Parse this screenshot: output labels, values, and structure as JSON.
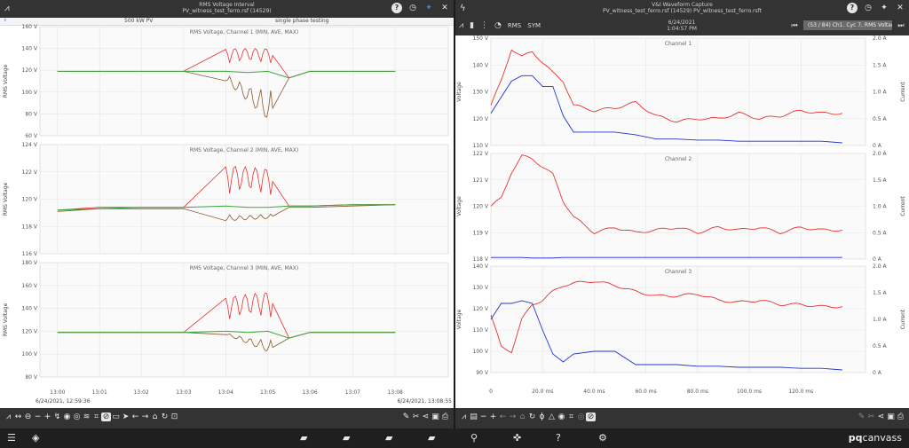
{
  "left_panel": {
    "title_line1": "RMS Voltage Interval",
    "title_line2": "PV_witness_test_ferro.rsf (14529)",
    "subheader_left": "500 kW PV",
    "subheader_right": "single phase testing",
    "chevron_icon": "chevron-right-icon",
    "start_datetime": "6/24/2021, 12:59:36",
    "end_datetime": "6/24/2021, 13:08:55",
    "xticks": [
      "13:00",
      "13:01",
      "13:02",
      "13:03",
      "13:04",
      "13:05",
      "13:06",
      "13:07",
      "13:08"
    ],
    "charts": [
      {
        "title": "RMS Voltage, Channel 1 (MIN, AVE, MAX)",
        "ylabel": "RMS Voltage",
        "yticks": [
          "160 V",
          "140 V",
          "120 V",
          "100 V",
          "80 V",
          "60 V"
        ]
      },
      {
        "title": "RMS Voltage, Channel 2 (MIN, AVE, MAX)",
        "ylabel": "RMS Voltage",
        "yticks": [
          "124 V",
          "122 V",
          "120 V",
          "118 V",
          "116 V"
        ]
      },
      {
        "title": "RMS Voltage, Channel 3 (MIN, AVE, MAX)",
        "ylabel": "RMS Voltage",
        "yticks": [
          "180 V",
          "160 V",
          "140 V",
          "120 V",
          "100 V",
          "80 V"
        ]
      }
    ]
  },
  "right_panel": {
    "title_line1": "V&I Waveform Capture",
    "title_line2": "PV_witness_test_ferro.rsf (14529) PV_witness_test_ferro.rsft",
    "date": "6/24/2021",
    "time": "1:04:57 PM",
    "rms_label": "RMS",
    "sym_label": "SYM",
    "event_box": "(53 / 84) Ch1. Cyc 7, RMS Voltage %",
    "xticks": [
      "0",
      "20.0 ms",
      "40.0 ms",
      "60.0 ms",
      "80.0 ms",
      "100.0 ms",
      "120.0 ms"
    ],
    "charts": [
      {
        "title": "Channel 1",
        "ylabel": "Voltage",
        "y2label": "Current",
        "yticks": [
          "150 V",
          "140 V",
          "130 V",
          "120 V",
          "110 V"
        ],
        "y2ticks": [
          "2.0 A",
          "1.5 A",
          "1.0 A",
          "0.5 A",
          "0 A"
        ]
      },
      {
        "title": "Channel 2",
        "ylabel": "Voltage",
        "y2label": "Current",
        "yticks": [
          "122 V",
          "121 V",
          "120 V",
          "119 V",
          "118 V"
        ],
        "y2ticks": [
          "2.0 A",
          "1.5 A",
          "1.0 A",
          "0.5 A",
          "0 A"
        ]
      },
      {
        "title": "Channel 3",
        "ylabel": "Voltage",
        "y2label": "Current",
        "yticks": [
          "140 V",
          "130 V",
          "120 V",
          "110 V",
          "100 V",
          "90 V"
        ],
        "y2ticks": [
          "2.0 A",
          "1.5 A",
          "1.0 A",
          "0.5 A",
          "0 A"
        ]
      }
    ]
  },
  "brand": {
    "prefix": "pq",
    "suffix": "canvass"
  },
  "colors": {
    "max": "#e8312f",
    "min": "#3aa63a",
    "ave": "#8a5a2b",
    "current": "#2233cc",
    "toolbar": "#333333",
    "accent": "#2d8df0"
  },
  "chart_data": [
    {
      "type": "line",
      "title": "RMS Voltage, Channel 1 (MIN, AVE, MAX)",
      "ylabel": "RMS Voltage",
      "ylim": [
        60,
        160
      ],
      "x": [
        "13:00",
        "13:01",
        "13:02",
        "13:03",
        "13:04",
        "13:04:30",
        "13:05",
        "13:05:30",
        "13:06",
        "13:07",
        "13:08"
      ],
      "series": [
        {
          "values": [
            119,
            119,
            119,
            119,
            140,
            138,
            140,
            113,
            119,
            119,
            119
          ]
        },
        {
          "values": [
            119,
            119,
            119,
            119,
            119,
            118,
            119,
            113,
            119,
            119,
            119
          ]
        },
        {
          "values": [
            119,
            119,
            119,
            119,
            110,
            95,
            70,
            113,
            119,
            119,
            119
          ]
        }
      ]
    },
    {
      "type": "line",
      "title": "RMS Voltage, Channel 2 (MIN, AVE, MAX)",
      "ylabel": "RMS Voltage",
      "ylim": [
        116,
        124
      ],
      "x": [
        "13:00",
        "13:01",
        "13:02",
        "13:03",
        "13:04",
        "13:04:30",
        "13:05",
        "13:05:30",
        "13:06",
        "13:07",
        "13:08"
      ],
      "series": [
        {
          "values": [
            119.2,
            119.4,
            119.4,
            119.4,
            122.5,
            121.7,
            122.2,
            119.5,
            119.5,
            119.6,
            119.6
          ]
        },
        {
          "values": [
            119.2,
            119.3,
            119.4,
            119.4,
            119.5,
            119.4,
            119.4,
            119.5,
            119.5,
            119.6,
            119.6
          ]
        },
        {
          "values": [
            119.1,
            119.3,
            119.3,
            119.3,
            118.4,
            118.7,
            118.6,
            119.4,
            119.4,
            119.5,
            119.6
          ]
        }
      ]
    },
    {
      "type": "line",
      "title": "RMS Voltage, Channel 3 (MIN, AVE, MAX)",
      "ylabel": "RMS Voltage",
      "ylim": [
        80,
        180
      ],
      "x": [
        "13:00",
        "13:01",
        "13:02",
        "13:03",
        "13:04",
        "13:04:30",
        "13:05",
        "13:05:30",
        "13:06",
        "13:07",
        "13:08"
      ],
      "series": [
        {
          "values": [
            119,
            119,
            119,
            119,
            150,
            152,
            155,
            114,
            119,
            119,
            119
          ]
        },
        {
          "values": [
            119,
            119,
            119,
            119,
            120,
            119,
            120,
            114,
            119,
            119,
            119
          ]
        },
        {
          "values": [
            119,
            119,
            119,
            119,
            117,
            112,
            100,
            114,
            119,
            119,
            119
          ]
        }
      ]
    },
    {
      "type": "line",
      "title": "Channel 1",
      "ylabel": "Voltage",
      "ylim": [
        110,
        150
      ],
      "x": [
        0,
        4,
        8,
        12,
        16,
        20,
        24,
        28,
        32,
        40,
        48,
        56,
        64,
        72,
        80,
        88,
        96,
        104,
        112,
        120,
        128,
        136
      ],
      "series": [
        {
          "values": [
            125,
            134,
            146,
            143,
            145,
            141,
            137,
            134,
            125,
            123,
            124,
            126,
            121,
            119,
            120,
            120,
            122,
            120,
            121,
            123,
            122,
            122
          ]
        },
        {
          "values": [
            0.6,
            0.9,
            1.2,
            1.3,
            1.3,
            1.1,
            1.1,
            0.55,
            0.25,
            0.25,
            0.25,
            0.2,
            0.12,
            0.12,
            0.1,
            0.1,
            0.08,
            0.08,
            0.08,
            0.08,
            0.08,
            0.05
          ]
        }
      ]
    },
    {
      "type": "line",
      "title": "Channel 2",
      "ylabel": "Voltage",
      "ylim": [
        118,
        122
      ],
      "x": [
        0,
        4,
        8,
        12,
        16,
        20,
        24,
        28,
        32,
        40,
        48,
        56,
        64,
        72,
        80,
        88,
        96,
        104,
        112,
        120,
        128,
        136
      ],
      "series": [
        {
          "values": [
            120.0,
            120.3,
            121.3,
            121.9,
            121.8,
            121.5,
            121.2,
            120.2,
            119.6,
            119.0,
            119.2,
            119.0,
            119.1,
            119.2,
            119.0,
            119.2,
            119.1,
            119.2,
            119.0,
            119.2,
            119.1,
            119.1
          ]
        },
        {
          "values": [
            0.03,
            0.03,
            0.03,
            0.03,
            0.02,
            0.02,
            0.02,
            0.03,
            0.03,
            0.03,
            0.03,
            0.03,
            0.03,
            0.03,
            0.03,
            0.03,
            0.03,
            0.03,
            0.03,
            0.03,
            0.03,
            0.03
          ]
        }
      ]
    },
    {
      "type": "line",
      "title": "Channel 3",
      "ylabel": "Voltage",
      "ylim": [
        90,
        140
      ],
      "x": [
        0,
        4,
        8,
        12,
        16,
        20,
        24,
        28,
        32,
        40,
        48,
        56,
        64,
        72,
        80,
        88,
        96,
        104,
        112,
        120,
        128,
        136
      ],
      "series": [
        {
          "values": [
            117,
            102,
            100,
            115,
            122,
            124,
            128,
            131,
            132,
            133,
            131,
            128,
            126,
            126,
            127,
            124,
            123,
            124,
            122,
            122,
            121,
            121
          ]
        },
        {
          "values": [
            1.0,
            1.3,
            1.3,
            1.35,
            1.3,
            0.8,
            0.35,
            0.2,
            0.35,
            0.4,
            0.4,
            0.15,
            0.15,
            0.15,
            0.12,
            0.12,
            0.1,
            0.1,
            0.1,
            0.08,
            0.08,
            0.05
          ]
        }
      ]
    }
  ]
}
